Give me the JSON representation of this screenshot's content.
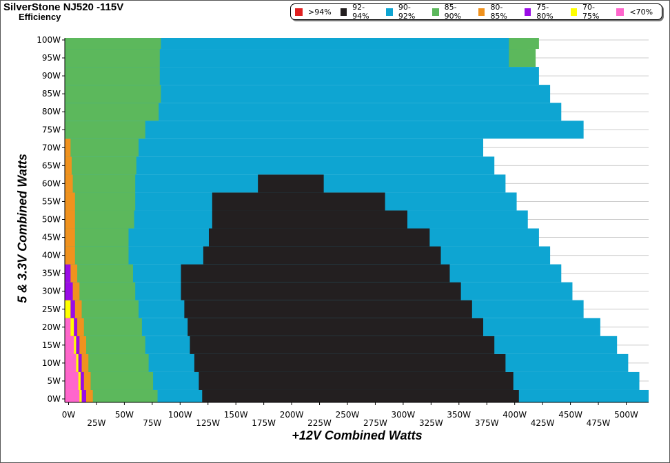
{
  "chart_data": {
    "type": "heatmap",
    "title": "SilverStone NJ520 -115V",
    "subtitle": "Efficiency",
    "xlabel": "+12V Combined Watts",
    "ylabel": "5 & 3.3V Combined Watts",
    "xlim": [
      0,
      520
    ],
    "ylim": [
      0,
      100
    ],
    "x_ticks": [
      "0W",
      "25W",
      "50W",
      "75W",
      "100W",
      "125W",
      "150W",
      "175W",
      "200W",
      "225W",
      "250W",
      "275W",
      "300W",
      "325W",
      "350W",
      "375W",
      "400W",
      "425W",
      "450W",
      "475W",
      "500W"
    ],
    "y_ticks": [
      "0W",
      "5W",
      "10W",
      "15W",
      "20W",
      "25W",
      "30W",
      "35W",
      "40W",
      "45W",
      "50W",
      "55W",
      "60W",
      "65W",
      "70W",
      "75W",
      "80W",
      "85W",
      "90W",
      "95W",
      "100W"
    ],
    "legend_placement": "top-right",
    "grid": true,
    "legend": [
      {
        "label": ">94%",
        "color": "#e02020"
      },
      {
        "label": "92-94%",
        "color": "#231f20"
      },
      {
        "label": "90-92%",
        "color": "#0ea5d2"
      },
      {
        "label": "85-90%",
        "color": "#5cb85c"
      },
      {
        "label": "80-85%",
        "color": "#f0921e"
      },
      {
        "label": "75-80%",
        "color": "#9a0ce6"
      },
      {
        "label": "70-75%",
        "color": "#ffff00"
      },
      {
        "label": "<70%",
        "color": "#ff66cc"
      }
    ],
    "boundaries": {
      "y": [
        0,
        5,
        10,
        15,
        20,
        25,
        30,
        35,
        40,
        45,
        50,
        55,
        60,
        65,
        70,
        75,
        80,
        85,
        90,
        95,
        100
      ],
      "pink_to": [
        11,
        10,
        8,
        6,
        3,
        0,
        0,
        0,
        0,
        0,
        0,
        0,
        0,
        0,
        0,
        0,
        0,
        0,
        0,
        0,
        0
      ],
      "yellow_to": [
        13,
        12,
        10,
        8,
        6,
        3,
        0,
        0,
        0,
        0,
        0,
        0,
        0,
        0,
        0,
        0,
        0,
        0,
        0,
        0,
        0
      ],
      "purple_to": [
        17,
        15,
        13,
        11,
        9,
        7,
        5,
        3,
        0,
        0,
        0,
        0,
        0,
        0,
        0,
        0,
        0,
        0,
        0,
        0,
        0
      ],
      "orange_to": [
        23,
        21,
        19,
        17,
        15,
        13,
        11,
        9,
        7,
        7,
        7,
        7,
        5,
        4,
        3,
        0,
        0,
        0,
        0,
        0,
        0
      ],
      "green_to": [
        81,
        77,
        73,
        70,
        67,
        64,
        61,
        59,
        55,
        55,
        60,
        61,
        61,
        62,
        64,
        70,
        82,
        84,
        83,
        83,
        84
      ],
      "black_from": [
        121,
        118,
        114,
        110,
        108,
        105,
        102,
        102,
        122,
        127,
        130,
        130,
        171,
        0,
        0,
        0,
        0,
        0,
        0,
        0,
        0
      ],
      "black_to": [
        405,
        400,
        393,
        383,
        373,
        363,
        353,
        343,
        335,
        325,
        305,
        285,
        230,
        0,
        0,
        0,
        0,
        0,
        0,
        0,
        0
      ],
      "blue_to": [
        522,
        513,
        503,
        493,
        478,
        463,
        453,
        443,
        433,
        423,
        413,
        403,
        393,
        383,
        373,
        463,
        443,
        433,
        423,
        413,
        403
      ],
      "green_right_from": [
        0,
        0,
        0,
        0,
        0,
        0,
        0,
        0,
        0,
        0,
        0,
        0,
        0,
        0,
        0,
        0,
        0,
        0,
        0,
        396,
        396
      ],
      "green_right_to": [
        0,
        0,
        0,
        0,
        0,
        0,
        0,
        0,
        0,
        0,
        0,
        0,
        0,
        0,
        0,
        0,
        0,
        0,
        0,
        420,
        423
      ]
    }
  }
}
